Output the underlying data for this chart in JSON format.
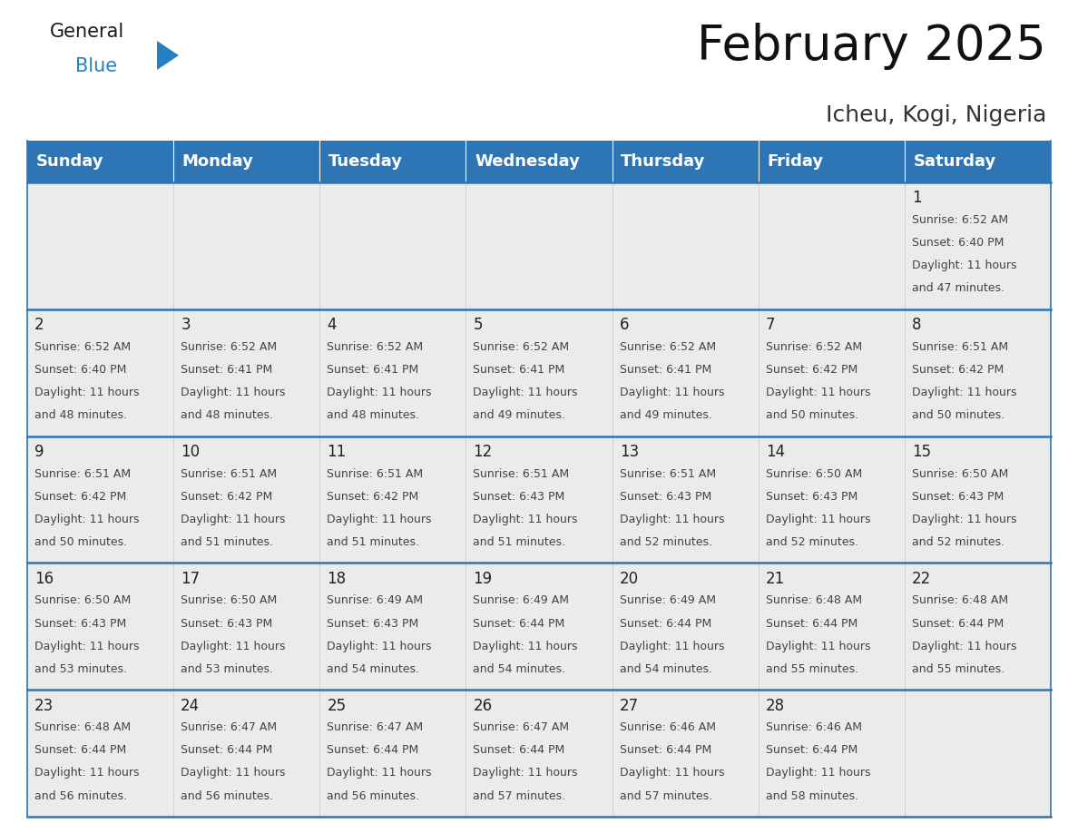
{
  "title": "February 2025",
  "subtitle": "Icheu, Kogi, Nigeria",
  "header_bg": "#2E75B6",
  "header_text_color": "#FFFFFF",
  "cell_bg": "#EBEBEB",
  "text_color": "#444444",
  "day_number_color": "#222222",
  "border_color": "#2E75B6",
  "days_of_week": [
    "Sunday",
    "Monday",
    "Tuesday",
    "Wednesday",
    "Thursday",
    "Friday",
    "Saturday"
  ],
  "weeks": [
    [
      {
        "day": null,
        "sunrise": null,
        "sunset": null,
        "daylight": ""
      },
      {
        "day": null,
        "sunrise": null,
        "sunset": null,
        "daylight": ""
      },
      {
        "day": null,
        "sunrise": null,
        "sunset": null,
        "daylight": ""
      },
      {
        "day": null,
        "sunrise": null,
        "sunset": null,
        "daylight": ""
      },
      {
        "day": null,
        "sunrise": null,
        "sunset": null,
        "daylight": ""
      },
      {
        "day": null,
        "sunrise": null,
        "sunset": null,
        "daylight": ""
      },
      {
        "day": 1,
        "sunrise": "6:52 AM",
        "sunset": "6:40 PM",
        "daylight": "11 hours and 47 minutes."
      }
    ],
    [
      {
        "day": 2,
        "sunrise": "6:52 AM",
        "sunset": "6:40 PM",
        "daylight": "11 hours and 48 minutes."
      },
      {
        "day": 3,
        "sunrise": "6:52 AM",
        "sunset": "6:41 PM",
        "daylight": "11 hours and 48 minutes."
      },
      {
        "day": 4,
        "sunrise": "6:52 AM",
        "sunset": "6:41 PM",
        "daylight": "11 hours and 48 minutes."
      },
      {
        "day": 5,
        "sunrise": "6:52 AM",
        "sunset": "6:41 PM",
        "daylight": "11 hours and 49 minutes."
      },
      {
        "day": 6,
        "sunrise": "6:52 AM",
        "sunset": "6:41 PM",
        "daylight": "11 hours and 49 minutes."
      },
      {
        "day": 7,
        "sunrise": "6:52 AM",
        "sunset": "6:42 PM",
        "daylight": "11 hours and 50 minutes."
      },
      {
        "day": 8,
        "sunrise": "6:51 AM",
        "sunset": "6:42 PM",
        "daylight": "11 hours and 50 minutes."
      }
    ],
    [
      {
        "day": 9,
        "sunrise": "6:51 AM",
        "sunset": "6:42 PM",
        "daylight": "11 hours and 50 minutes."
      },
      {
        "day": 10,
        "sunrise": "6:51 AM",
        "sunset": "6:42 PM",
        "daylight": "11 hours and 51 minutes."
      },
      {
        "day": 11,
        "sunrise": "6:51 AM",
        "sunset": "6:42 PM",
        "daylight": "11 hours and 51 minutes."
      },
      {
        "day": 12,
        "sunrise": "6:51 AM",
        "sunset": "6:43 PM",
        "daylight": "11 hours and 51 minutes."
      },
      {
        "day": 13,
        "sunrise": "6:51 AM",
        "sunset": "6:43 PM",
        "daylight": "11 hours and 52 minutes."
      },
      {
        "day": 14,
        "sunrise": "6:50 AM",
        "sunset": "6:43 PM",
        "daylight": "11 hours and 52 minutes."
      },
      {
        "day": 15,
        "sunrise": "6:50 AM",
        "sunset": "6:43 PM",
        "daylight": "11 hours and 52 minutes."
      }
    ],
    [
      {
        "day": 16,
        "sunrise": "6:50 AM",
        "sunset": "6:43 PM",
        "daylight": "11 hours and 53 minutes."
      },
      {
        "day": 17,
        "sunrise": "6:50 AM",
        "sunset": "6:43 PM",
        "daylight": "11 hours and 53 minutes."
      },
      {
        "day": 18,
        "sunrise": "6:49 AM",
        "sunset": "6:43 PM",
        "daylight": "11 hours and 54 minutes."
      },
      {
        "day": 19,
        "sunrise": "6:49 AM",
        "sunset": "6:44 PM",
        "daylight": "11 hours and 54 minutes."
      },
      {
        "day": 20,
        "sunrise": "6:49 AM",
        "sunset": "6:44 PM",
        "daylight": "11 hours and 54 minutes."
      },
      {
        "day": 21,
        "sunrise": "6:48 AM",
        "sunset": "6:44 PM",
        "daylight": "11 hours and 55 minutes."
      },
      {
        "day": 22,
        "sunrise": "6:48 AM",
        "sunset": "6:44 PM",
        "daylight": "11 hours and 55 minutes."
      }
    ],
    [
      {
        "day": 23,
        "sunrise": "6:48 AM",
        "sunset": "6:44 PM",
        "daylight": "11 hours and 56 minutes."
      },
      {
        "day": 24,
        "sunrise": "6:47 AM",
        "sunset": "6:44 PM",
        "daylight": "11 hours and 56 minutes."
      },
      {
        "day": 25,
        "sunrise": "6:47 AM",
        "sunset": "6:44 PM",
        "daylight": "11 hours and 56 minutes."
      },
      {
        "day": 26,
        "sunrise": "6:47 AM",
        "sunset": "6:44 PM",
        "daylight": "11 hours and 57 minutes."
      },
      {
        "day": 27,
        "sunrise": "6:46 AM",
        "sunset": "6:44 PM",
        "daylight": "11 hours and 57 minutes."
      },
      {
        "day": 28,
        "sunrise": "6:46 AM",
        "sunset": "6:44 PM",
        "daylight": "11 hours and 58 minutes."
      },
      {
        "day": null,
        "sunrise": null,
        "sunset": null,
        "daylight": ""
      }
    ]
  ],
  "logo_color_general": "#1a1a1a",
  "logo_color_blue": "#2780C4",
  "logo_triangle_color": "#2780C4",
  "title_fontsize": 38,
  "subtitle_fontsize": 18,
  "header_fontsize": 13,
  "day_num_fontsize": 12,
  "cell_text_fontsize": 9
}
